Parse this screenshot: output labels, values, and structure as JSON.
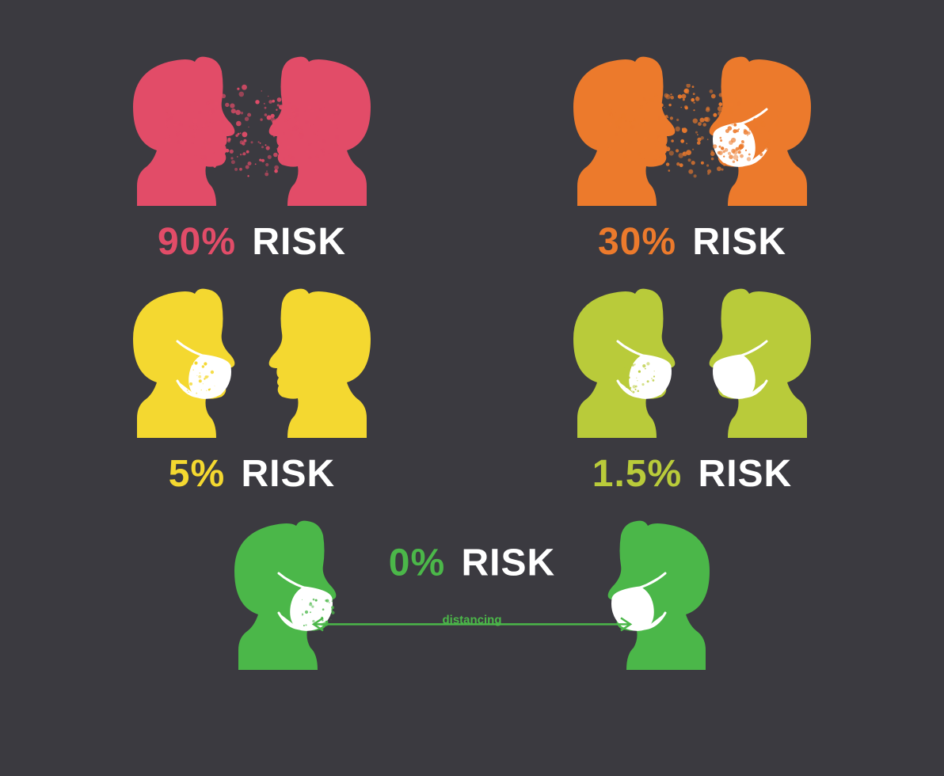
{
  "infographic": {
    "background_color": "#3b3a40",
    "risk_word": "RISK",
    "risk_word_color": "#ffffff",
    "mask_color": "#ffffff",
    "label_fontsize": 48,
    "panels": [
      {
        "id": "no-mask-no-mask",
        "percent": "90%",
        "color": "#e24c68",
        "left_mask": false,
        "right_mask": false,
        "droplets": "heavy",
        "droplet_color": "#e24c68"
      },
      {
        "id": "no-mask-mask",
        "percent": "30%",
        "color": "#ec7a2c",
        "left_mask": false,
        "right_mask": true,
        "droplets": "heavy",
        "droplet_color": "#ec7a2c"
      },
      {
        "id": "mask-no-mask",
        "percent": "5%",
        "color": "#f4d830",
        "left_mask": true,
        "right_mask": false,
        "droplets": "light",
        "droplet_color": "#f4d830"
      },
      {
        "id": "mask-mask",
        "percent": "1.5%",
        "color": "#b9cb3a",
        "left_mask": true,
        "right_mask": true,
        "droplets": "light",
        "droplet_color": "#b9cb3a"
      },
      {
        "id": "mask-mask-distance",
        "percent": "0%",
        "color": "#4bb749",
        "left_mask": true,
        "right_mask": true,
        "droplets": "light",
        "droplet_color": "#4bb749",
        "distancing_label": "distancing",
        "distancing_arrow_color": "#4bb749"
      }
    ]
  }
}
